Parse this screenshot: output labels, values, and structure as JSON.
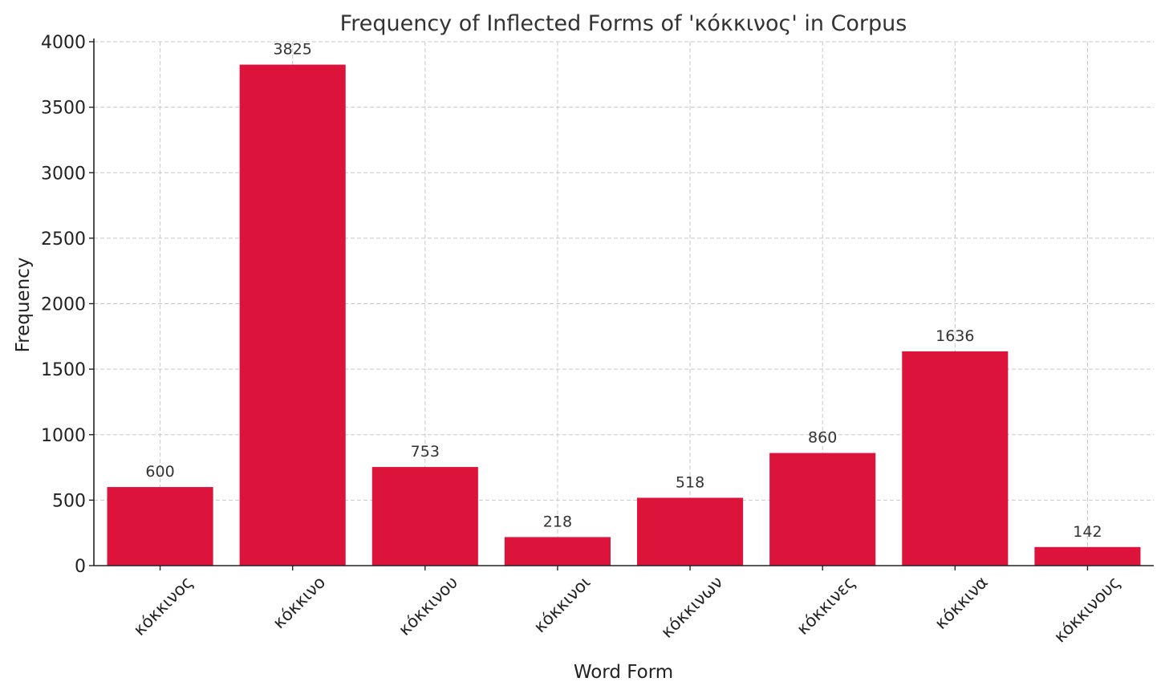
{
  "chart_data": {
    "type": "bar",
    "title": "Frequency of Inflected Forms of 'κόκκινος' in Corpus",
    "xlabel": "Word Form",
    "ylabel": "Frequency",
    "categories": [
      "κόκκινος",
      "κόκκινο",
      "κόκκινου",
      "κόκκινοι",
      "κόκκινων",
      "κόκκινες",
      "κόκκινα",
      "κόκκινους"
    ],
    "values": [
      600,
      3825,
      753,
      218,
      518,
      860,
      1636,
      142
    ],
    "ylim": [
      0,
      4000
    ],
    "yticks": [
      0,
      500,
      1000,
      1500,
      2000,
      2500,
      3000,
      3500,
      4000
    ],
    "grid": true,
    "bar_color": "#dc143c",
    "data_labels": true
  }
}
